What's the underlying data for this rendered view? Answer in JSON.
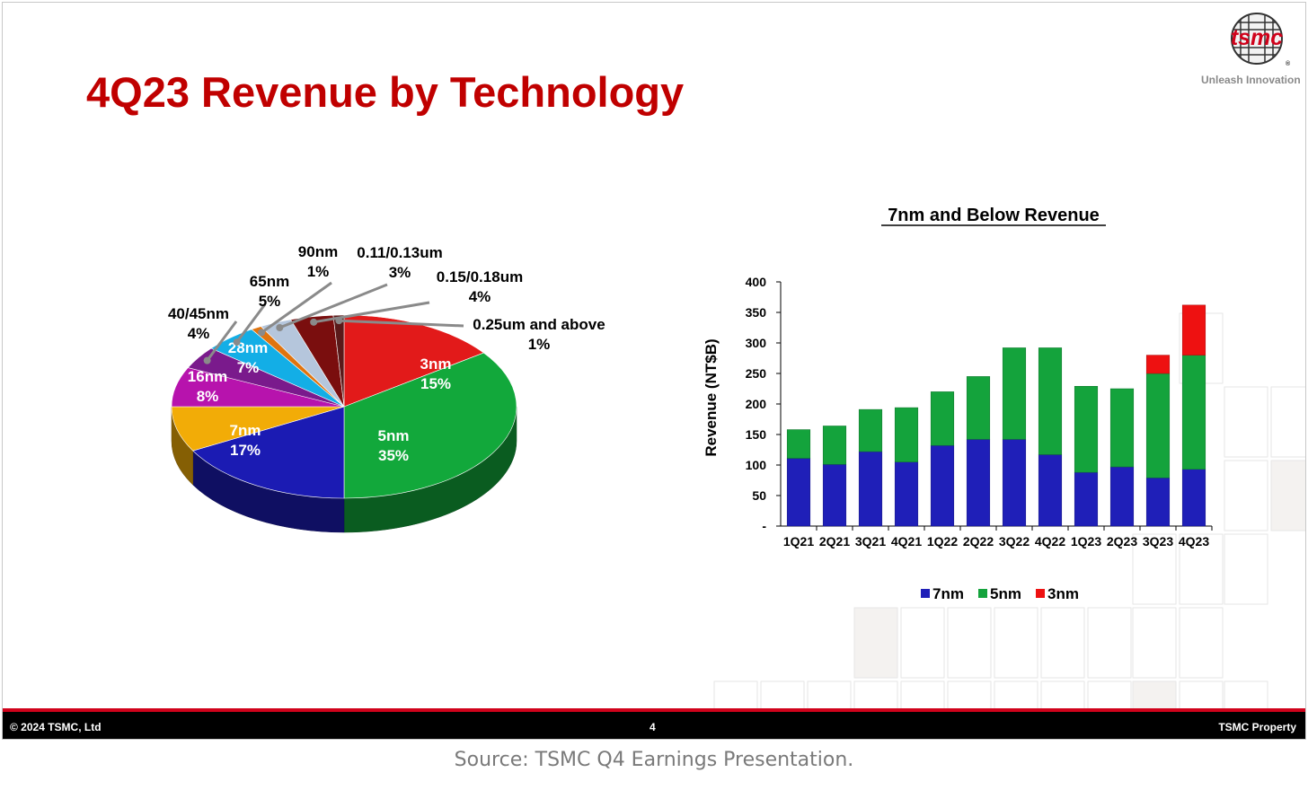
{
  "slide": {
    "title": "4Q23 Revenue by Technology",
    "logo_text": "tsmc",
    "tagline": "Unleash Innovation",
    "footer_left": "© 2024 TSMC, Ltd",
    "footer_page": "4",
    "footer_right": "TSMC Property"
  },
  "source": "Source: TSMC Q4 Earnings Presentation.",
  "colors": {
    "title_red": "#c00000",
    "footer_bar": "#000000",
    "footer_accent": "#d0021b",
    "nm7": "#1f1fb8",
    "nm5": "#14a33c",
    "nm3": "#ee1111"
  },
  "chart_data": [
    {
      "type": "pie",
      "title": "",
      "style": "3d",
      "slices": [
        {
          "label": "3nm",
          "value": 15,
          "display": "15%",
          "color": "#e21a1a",
          "label_position": "inside"
        },
        {
          "label": "5nm",
          "value": 35,
          "display": "35%",
          "color": "#12a83b",
          "label_position": "inside"
        },
        {
          "label": "7nm",
          "value": 17,
          "display": "17%",
          "color": "#1b1bb3",
          "label_position": "inside"
        },
        {
          "label": "16nm",
          "value": 8,
          "display": "8%",
          "color": "#f2ac07",
          "label_position": "inside"
        },
        {
          "label": "28nm",
          "value": 7,
          "display": "7%",
          "color": "#b713ad",
          "label_position": "inside"
        },
        {
          "label": "40/45nm",
          "value": 4,
          "display": "4%",
          "color": "#7a1a8c",
          "label_position": "outside"
        },
        {
          "label": "65nm",
          "value": 5,
          "display": "5%",
          "color": "#13aee6",
          "label_position": "outside"
        },
        {
          "label": "90nm",
          "value": 1,
          "display": "1%",
          "color": "#e0740f",
          "label_position": "outside"
        },
        {
          "label": "0.11/0.13um",
          "value": 3,
          "display": "3%",
          "color": "#b5c6dc",
          "label_position": "outside"
        },
        {
          "label": "0.15/0.18um",
          "value": 4,
          "display": "4%",
          "color": "#7a0e0e",
          "label_position": "outside"
        },
        {
          "label": "0.25um and above",
          "value": 1,
          "display": "1%",
          "color": "#5a1a1a",
          "label_position": "outside"
        }
      ]
    },
    {
      "type": "bar",
      "stacked": true,
      "title": "7nm and Below Revenue",
      "xlabel": "",
      "ylabel": "Revenue (NT$B)",
      "ylim": [
        0,
        400
      ],
      "yticks": [
        0,
        50,
        100,
        150,
        200,
        250,
        300,
        350,
        400
      ],
      "ytick_labels": [
        "-",
        "50",
        "100",
        "150",
        "200",
        "250",
        "300",
        "350",
        "400"
      ],
      "categories": [
        "1Q21",
        "2Q21",
        "3Q21",
        "4Q21",
        "1Q22",
        "2Q22",
        "3Q22",
        "4Q22",
        "1Q23",
        "2Q23",
        "3Q23",
        "4Q23"
      ],
      "series": [
        {
          "name": "7nm",
          "color": "#1f1fb8",
          "values": [
            111,
            101,
            122,
            105,
            132,
            142,
            142,
            117,
            88,
            97,
            79,
            93
          ]
        },
        {
          "name": "5nm",
          "color": "#14a33c",
          "values": [
            47,
            63,
            69,
            89,
            88,
            103,
            150,
            175,
            141,
            128,
            171,
            187
          ]
        },
        {
          "name": "3nm",
          "color": "#ee1111",
          "values": [
            0,
            0,
            0,
            0,
            0,
            0,
            0,
            0,
            0,
            0,
            30,
            82
          ]
        }
      ],
      "legend_position": "bottom",
      "grid": false
    }
  ]
}
